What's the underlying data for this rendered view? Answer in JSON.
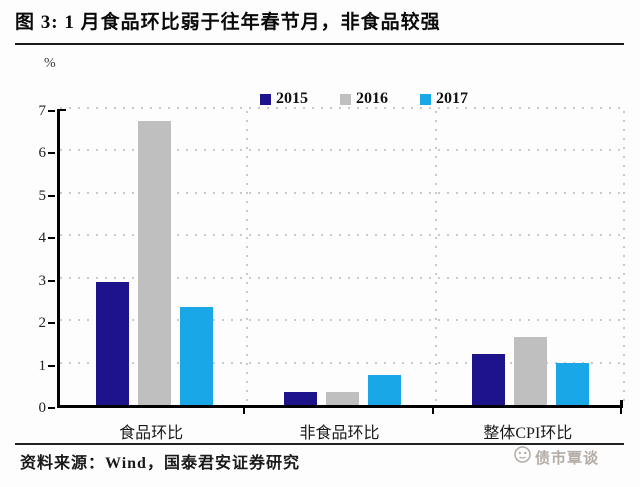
{
  "header": {
    "title": "图 3: 1 月食品环比弱于往年春节月，非食品较强"
  },
  "chart": {
    "unit_label": "%"
  },
  "chart_data": {
    "type": "bar",
    "title": "图 3: 1 月食品环比弱于往年春节月，非食品较强",
    "categories": [
      "食品环比",
      "非食品环比",
      "整体CPI环比"
    ],
    "series": [
      {
        "name": "2015",
        "color": "#1D148C",
        "values": [
          2.9,
          0.3,
          1.2
        ]
      },
      {
        "name": "2016",
        "color": "#BFBFBF",
        "values": [
          6.7,
          0.3,
          1.6
        ]
      },
      {
        "name": "2017",
        "color": "#19A7E8",
        "values": [
          2.3,
          0.7,
          1.0
        ]
      }
    ],
    "xlabel": "",
    "ylabel": "%",
    "ylim": [
      0,
      7
    ],
    "y_ticks": [
      0,
      1,
      2,
      3,
      4,
      5,
      6,
      7
    ],
    "grid": "horizontal-dotted",
    "legend_position": "top"
  },
  "footer": {
    "source": "资料来源：Wind，国泰君安证券研究",
    "watermark": "债市覃谈"
  }
}
